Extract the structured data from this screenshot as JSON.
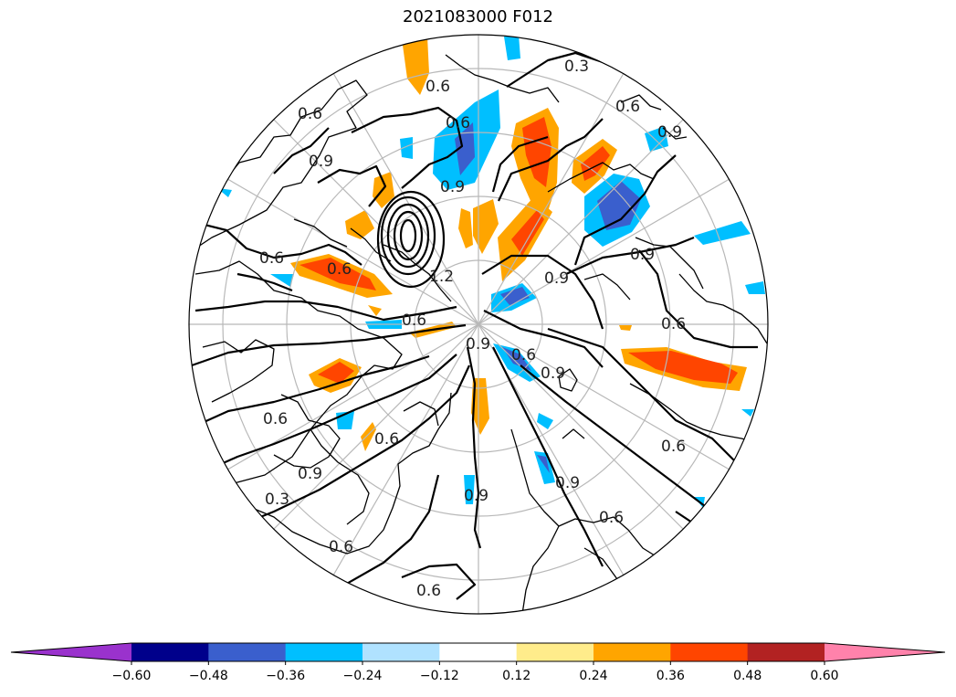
{
  "title": "2021083000 F012",
  "projection": "north-polar-stereographic",
  "colorbar": {
    "extend": "both",
    "colors": [
      "#9a32cd",
      "#00008b",
      "#3a5fcd",
      "#00bfff",
      "#b0e2ff",
      "#ffffff",
      "#ffec8b",
      "#ffa500",
      "#ff4500",
      "#b22222",
      "#ff82ab"
    ],
    "tick_labels": [
      "−0.60",
      "−0.48",
      "−0.36",
      "−0.24",
      "−0.12",
      "0.12",
      "0.24",
      "0.36",
      "0.48",
      "0.60"
    ]
  },
  "contour_labels": [
    "0.3",
    "0.6",
    "0.6",
    "0.9",
    "0.9",
    "0.6",
    "0.6",
    "0.9",
    "0.9",
    "0.9",
    "0.6",
    "0.9",
    "0.6",
    "0.6",
    "0.9",
    "0.6",
    "0.9",
    "0.6",
    "0.6",
    "0.6",
    "0.9",
    "0.9",
    "0.6",
    "0.6",
    "0.3",
    "0.6",
    "0.6",
    "1.2"
  ]
}
